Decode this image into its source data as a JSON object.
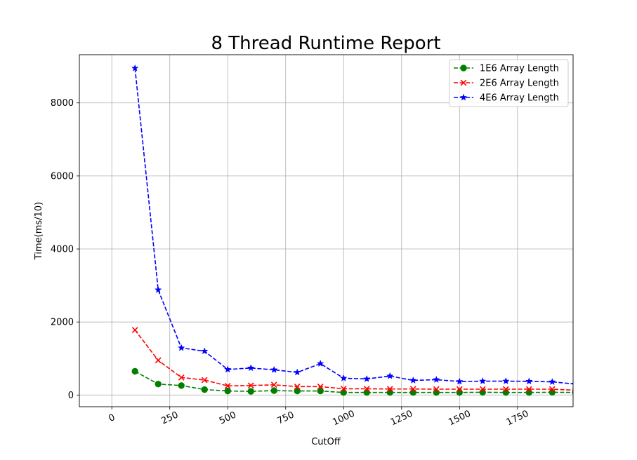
{
  "chart_data": {
    "type": "line",
    "title": "8 Thread Runtime Report",
    "xlabel": "CutOff",
    "ylabel": "Time(ms/10)",
    "xlim": [
      -140,
      1990
    ],
    "ylim": [
      -320,
      9320
    ],
    "x_ticks": [
      0,
      250,
      500,
      750,
      1000,
      1250,
      1500,
      1750
    ],
    "x_tick_labels": [
      "0",
      "250",
      "500",
      "750",
      "1000",
      "1250",
      "1500",
      "1750"
    ],
    "y_ticks": [
      0,
      2000,
      4000,
      6000,
      8000
    ],
    "y_tick_labels": [
      "0",
      "2000",
      "4000",
      "6000",
      "8000"
    ],
    "grid": true,
    "legend_position": "top-right",
    "x": [
      100,
      200,
      300,
      400,
      500,
      600,
      700,
      800,
      900,
      1000,
      1100,
      1200,
      1300,
      1400,
      1500,
      1600,
      1700,
      1800,
      1900,
      2000
    ],
    "series": [
      {
        "name": "1E6 Array Length",
        "color": "#008000",
        "marker": "circle",
        "values": [
          650,
          300,
          260,
          150,
          110,
          100,
          120,
          110,
          110,
          70,
          70,
          70,
          70,
          70,
          70,
          75,
          70,
          70,
          75,
          70
        ]
      },
      {
        "name": "2E6 Array Length",
        "color": "#ff0000",
        "marker": "x",
        "values": [
          1780,
          950,
          480,
          410,
          250,
          260,
          280,
          230,
          230,
          170,
          170,
          165,
          165,
          160,
          160,
          160,
          160,
          160,
          160,
          130
        ]
      },
      {
        "name": "4E6 Array Length",
        "color": "#0000ff",
        "marker": "star",
        "values": [
          8950,
          2880,
          1290,
          1200,
          700,
          740,
          690,
          620,
          860,
          460,
          440,
          520,
          400,
          420,
          370,
          380,
          380,
          375,
          360,
          300
        ]
      }
    ]
  }
}
